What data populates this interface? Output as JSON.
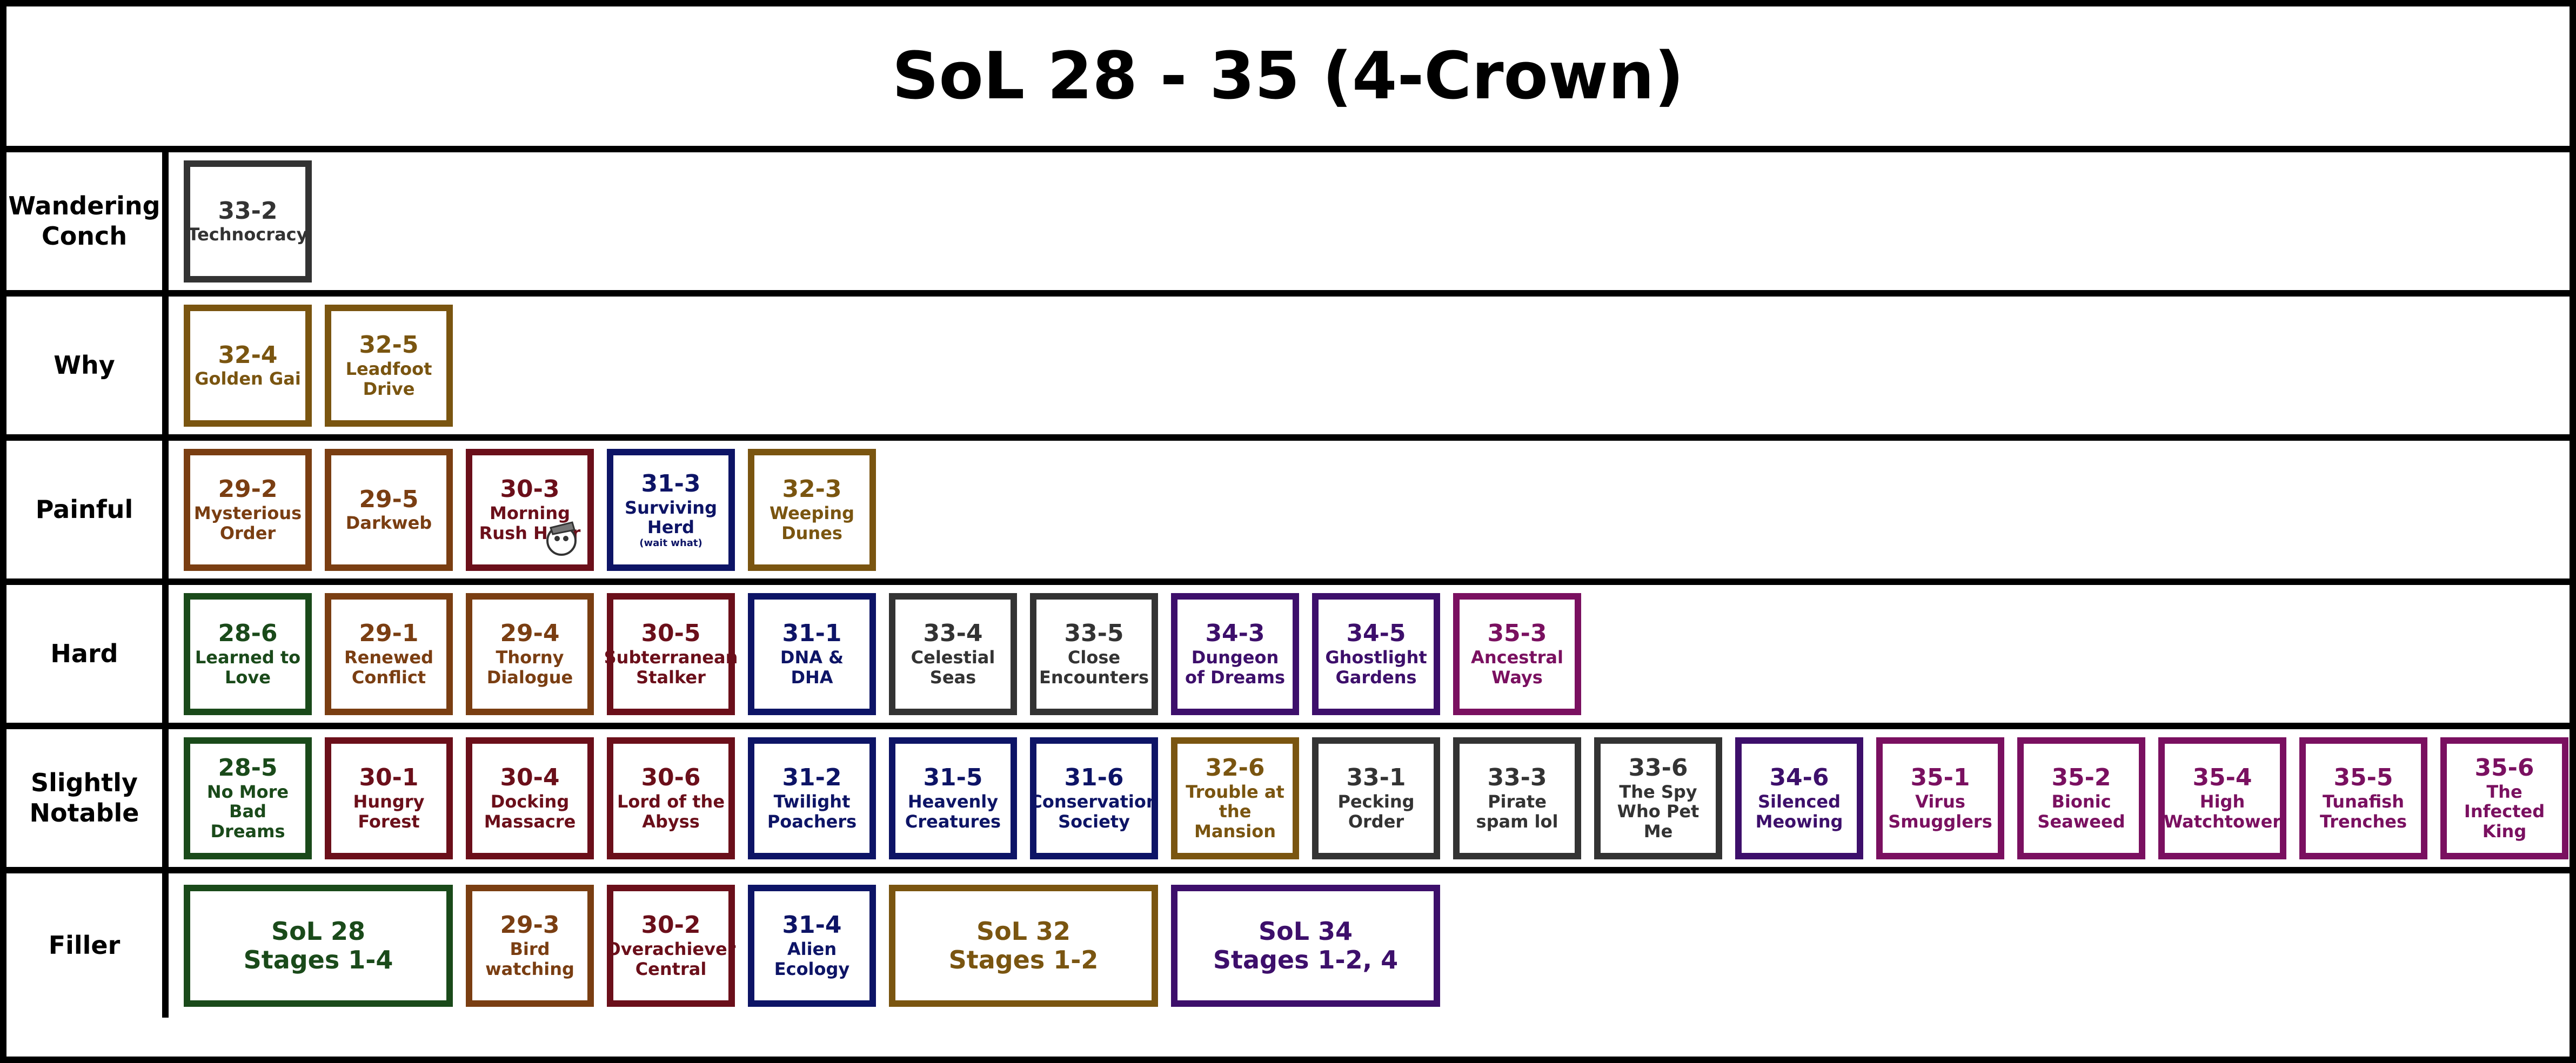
{
  "title": "SoL 28 - 35 (4-Crown)",
  "rows": [
    {
      "label": "Wandering Conch",
      "items": [
        {
          "code": "33-2",
          "name": "Technocracy",
          "color": "#333333"
        }
      ]
    },
    {
      "label": "Why",
      "items": [
        {
          "code": "32-4",
          "name": "Golden Gai",
          "color": "#7a5510"
        },
        {
          "code": "32-5",
          "name": "Leadfoot Drive",
          "color": "#7a5510"
        }
      ]
    },
    {
      "label": "Painful",
      "items": [
        {
          "code": "29-2",
          "name": "Mysterious Order",
          "color": "#7a3e12"
        },
        {
          "code": "29-5",
          "name": "Darkweb",
          "color": "#7a3e12"
        },
        {
          "code": "30-3",
          "name": "Morning Rush Hour",
          "color": "#6b0f1a"
        },
        {
          "code": "31-3",
          "name": "Surviving Herd",
          "note": "(wait what)",
          "color": "#0d1466"
        },
        {
          "code": "32-3",
          "name": "Weeping Dunes",
          "color": "#7a5510"
        }
      ]
    },
    {
      "label": "Hard",
      "items": [
        {
          "code": "28-6",
          "name": "Learned to Love",
          "color": "#1a4a1a"
        },
        {
          "code": "29-1",
          "name": "Renewed Conflict",
          "color": "#7a3e12"
        },
        {
          "code": "29-4",
          "name": "Thorny Dialogue",
          "color": "#7a3e12"
        },
        {
          "code": "30-5",
          "name": "Subterranean Stalker",
          "color": "#6b0f1a"
        },
        {
          "code": "31-1",
          "name": "DNA & DHA",
          "color": "#0d1466"
        },
        {
          "code": "33-4",
          "name": "Celestial Seas",
          "color": "#333333"
        },
        {
          "code": "33-5",
          "name": "Close Encounters",
          "color": "#333333"
        },
        {
          "code": "34-3",
          "name": "Dungeon of Dreams",
          "color": "#3d0f6b"
        },
        {
          "code": "34-5",
          "name": "Ghostlight Gardens",
          "color": "#3d0f6b"
        },
        {
          "code": "35-3",
          "name": "Ancestral Ways",
          "color": "#7a1060"
        }
      ]
    },
    {
      "label": "Slightly Notable",
      "items": [
        {
          "code": "28-5",
          "name": "No More Bad Dreams",
          "color": "#1a4a1a"
        },
        {
          "code": "30-1",
          "name": "Hungry Forest",
          "color": "#6b0f1a"
        },
        {
          "code": "30-4",
          "name": "Docking Massacre",
          "color": "#6b0f1a"
        },
        {
          "code": "30-6",
          "name": "Lord of the Abyss",
          "color": "#6b0f1a"
        },
        {
          "code": "31-2",
          "name": "Twilight Poachers",
          "color": "#0d1466"
        },
        {
          "code": "31-5",
          "name": "Heavenly Creatures",
          "color": "#0d1466"
        },
        {
          "code": "31-6",
          "name": "Conservation Society",
          "color": "#0d1466"
        },
        {
          "code": "32-6",
          "name": "Trouble at the Mansion",
          "color": "#7a5510"
        },
        {
          "code": "33-1",
          "name": "Pecking Order",
          "color": "#333333"
        },
        {
          "code": "33-3",
          "name": "Pirate spam lol",
          "color": "#333333"
        },
        {
          "code": "33-6",
          "name": "The Spy Who Pet Me",
          "color": "#333333"
        },
        {
          "code": "34-6",
          "name": "Silenced Meowing",
          "color": "#3d0f6b"
        },
        {
          "code": "35-1",
          "name": "Virus Smugglers",
          "color": "#7a1060"
        },
        {
          "code": "35-2",
          "name": "Bionic Seaweed",
          "color": "#7a1060"
        },
        {
          "code": "35-4",
          "name": "High Watchtower",
          "color": "#7a1060"
        },
        {
          "code": "35-5",
          "name": "Tunafish Trenches",
          "color": "#7a1060"
        },
        {
          "code": "35-6",
          "name": "The Infected King",
          "color": "#7a1060"
        }
      ]
    },
    {
      "label": "Filler",
      "items": [
        {
          "code": "SoL 28",
          "name": "Stages 1-4",
          "color": "#1a4a1a",
          "wide": true
        },
        {
          "code": "29-3",
          "name": "Bird watching",
          "color": "#7a3e12"
        },
        {
          "code": "30-2",
          "name": "Overachiever Central",
          "color": "#6b0f1a"
        },
        {
          "code": "31-4",
          "name": "Alien Ecology",
          "color": "#0d1466"
        },
        {
          "code": "SoL 32",
          "name": "Stages 1-2",
          "color": "#7a5510",
          "wide": true
        },
        {
          "code": "SoL 34",
          "name": "Stages 1-2, 4",
          "color": "#3d0f6b",
          "wide": true
        }
      ]
    }
  ]
}
